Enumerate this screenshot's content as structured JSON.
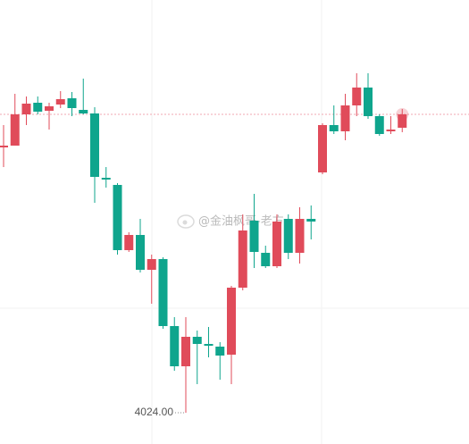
{
  "chart_data": {
    "type": "candlestick",
    "watermark": "@金油枫哥-老方",
    "low_label": {
      "value": 4024.0,
      "label": "4024.00"
    },
    "up_color": "#e04b5a",
    "down_color": "#0fa58d",
    "open": [
      4053.7,
      4053.9,
      4057.4,
      4058.7,
      4057.8,
      4058.5,
      4059.2,
      4057.9,
      4057.5,
      4050.3,
      4049.5,
      4042.2,
      4043.9,
      4040.0,
      4041.2,
      4033.7,
      4029.2,
      4032.5,
      4031.7,
      4031.4,
      4030.5,
      4038.0,
      4045.5,
      4041.9,
      4040.4,
      4045.7,
      4041.9,
      4045.7,
      4050.9,
      4056.2,
      4055.5,
      4058.4,
      4060.4,
      4057.2,
      4055.5,
      4055.9
    ],
    "high": [
      4056.2,
      4059.7,
      4059.4,
      4059.4,
      4058.7,
      4060.0,
      4059.9,
      4061.4,
      4058.2,
      4051.5,
      4049.7,
      4044.2,
      4045.7,
      4041.7,
      4041.4,
      4034.7,
      4034.7,
      4033.2,
      4033.6,
      4031.9,
      4038.2,
      4046.2,
      4048.5,
      4042.7,
      4046.2,
      4046.2,
      4047.0,
      4047.2,
      4056.4,
      4058.4,
      4059.7,
      4062.0,
      4062.0,
      4057.4,
      4057.2,
      4058.0
    ],
    "low": [
      4051.5,
      4053.9,
      4056.2,
      4057.4,
      4055.7,
      4058.1,
      4057.2,
      4057.4,
      4047.5,
      4049.2,
      4041.7,
      4042.0,
      4039.7,
      4036.2,
      4033.4,
      4028.7,
      4024.0,
      4027.2,
      4030.2,
      4027.7,
      4027.2,
      4037.7,
      4040.2,
      4040.2,
      4040.2,
      4041.2,
      4040.7,
      4043.4,
      4050.7,
      4055.2,
      4054.5,
      4057.2,
      4056.9,
      4055.0,
      4055.2,
      4055.4
    ],
    "close": [
      4053.9,
      4057.4,
      4058.6,
      4057.7,
      4058.3,
      4059.1,
      4058.1,
      4057.5,
      4050.4,
      4050.1,
      4042.2,
      4043.9,
      4040.0,
      4041.2,
      4033.7,
      4029.2,
      4032.5,
      4031.7,
      4031.5,
      4030.4,
      4038.0,
      4044.4,
      4042.0,
      4040.4,
      4045.4,
      4041.9,
      4045.7,
      4045.4,
      4056.2,
      4055.5,
      4058.4,
      4060.4,
      4057.2,
      4055.2,
      4055.7,
      4057.4
    ]
  }
}
